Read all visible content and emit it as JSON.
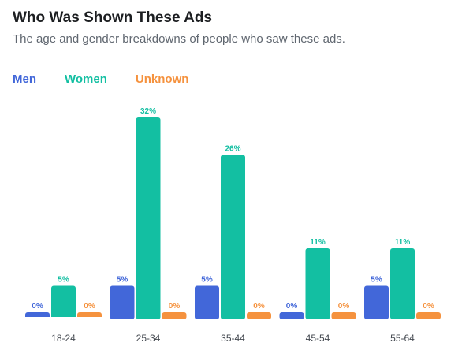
{
  "title": "Who Was Shown These Ads",
  "subtitle": "The age and gender breakdowns of people who saw these ads.",
  "chart_data": {
    "type": "bar",
    "categories": [
      "18-24",
      "25-34",
      "35-44",
      "45-54",
      "55-64"
    ],
    "series": [
      {
        "name": "Men",
        "color": "#4267d9",
        "values": [
          0,
          5,
          5,
          0,
          5
        ],
        "labels": [
          "0%",
          "5%",
          "5%",
          "0%",
          "5%"
        ]
      },
      {
        "name": "Women",
        "color": "#13bfa2",
        "values": [
          5,
          32,
          26,
          11,
          11
        ],
        "labels": [
          "5%",
          "32%",
          "26%",
          "11%",
          "11%"
        ]
      },
      {
        "name": "Unknown",
        "color": "#f5923e",
        "values": [
          0,
          0,
          0,
          0,
          0
        ],
        "labels": [
          "0%",
          "0%",
          "0%",
          "0%",
          "0%"
        ]
      }
    ],
    "ylim": [
      0,
      32
    ],
    "grid": false,
    "legend": "top-left"
  }
}
